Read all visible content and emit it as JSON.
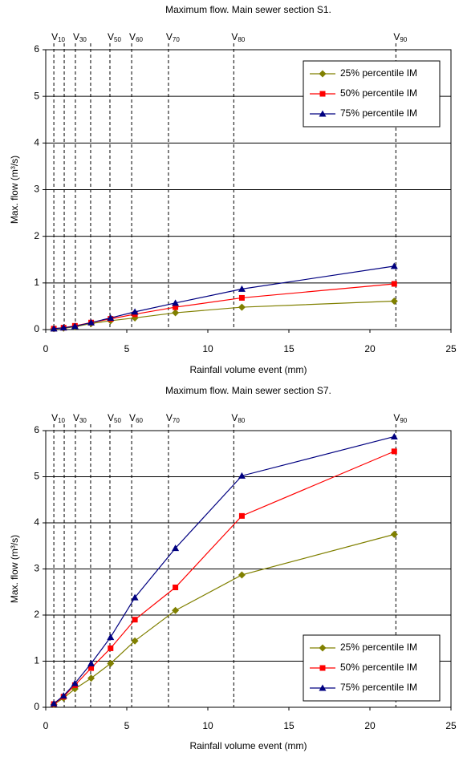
{
  "chart_data": [
    {
      "type": "line",
      "title": "Maximum flow. Main sewer section S1.",
      "xlabel": "Rainfall volume event (mm)",
      "ylabel": "Max. flow (m³/s)",
      "x": [
        0.5,
        1.1,
        1.8,
        2.8,
        4.0,
        5.5,
        8.0,
        12.1,
        21.5
      ],
      "series": [
        {
          "name": "25% percentile IM",
          "color": "#808000",
          "marker": "diamond",
          "values": [
            0.02,
            0.03,
            0.06,
            0.13,
            0.19,
            0.25,
            0.36,
            0.48,
            0.61
          ]
        },
        {
          "name": "50% percentile IM",
          "color": "#ff0000",
          "marker": "square",
          "values": [
            0.02,
            0.04,
            0.08,
            0.15,
            0.23,
            0.33,
            0.48,
            0.68,
            0.98
          ]
        },
        {
          "name": "75% percentile IM",
          "color": "#000080",
          "marker": "triangle",
          "values": [
            0.02,
            0.04,
            0.07,
            0.15,
            0.25,
            0.38,
            0.57,
            0.87,
            1.36
          ]
        }
      ],
      "vlines": [
        {
          "value": 0.5,
          "label": "V",
          "sub": "10"
        },
        {
          "value": 1.14,
          "label": null,
          "sub": null
        },
        {
          "value": 1.83,
          "label": "V",
          "sub": "30"
        },
        {
          "value": 2.77,
          "label": null,
          "sub": null
        },
        {
          "value": 3.96,
          "label": "V",
          "sub": "50"
        },
        {
          "value": 5.3,
          "label": "V",
          "sub": "60"
        },
        {
          "value": 7.57,
          "label": "V",
          "sub": "70"
        },
        {
          "value": 11.6,
          "label": "V",
          "sub": "80"
        },
        {
          "value": 21.6,
          "label": "V",
          "sub": "90"
        }
      ],
      "xlim": [
        0,
        25
      ],
      "xticks": [
        0,
        5,
        10,
        15,
        20,
        25
      ],
      "ylim": [
        0,
        6
      ],
      "yticks": [
        0,
        1,
        2,
        3,
        4,
        5,
        6
      ],
      "grid": true,
      "legend": "upper right"
    },
    {
      "type": "line",
      "title": "Maximum flow. Main sewer section S7.",
      "xlabel": "Rainfall volume event (mm)",
      "ylabel": "Max. flow (m³/s)",
      "x": [
        0.5,
        1.1,
        1.8,
        2.8,
        4.0,
        5.5,
        8.0,
        12.1,
        21.5
      ],
      "series": [
        {
          "name": "25% percentile IM",
          "color": "#808000",
          "marker": "diamond",
          "values": [
            0.06,
            0.2,
            0.4,
            0.63,
            0.95,
            1.44,
            2.1,
            2.87,
            3.75
          ]
        },
        {
          "name": "50% percentile IM",
          "color": "#ff0000",
          "marker": "square",
          "values": [
            0.07,
            0.23,
            0.48,
            0.85,
            1.28,
            1.9,
            2.6,
            4.15,
            5.55
          ]
        },
        {
          "name": "75% percentile IM",
          "color": "#000080",
          "marker": "triangle",
          "values": [
            0.08,
            0.25,
            0.52,
            0.95,
            1.52,
            2.38,
            3.45,
            5.02,
            5.87
          ]
        }
      ],
      "vlines": [
        {
          "value": 0.5,
          "label": "V",
          "sub": "10"
        },
        {
          "value": 1.14,
          "label": null,
          "sub": null
        },
        {
          "value": 1.83,
          "label": "V",
          "sub": "30"
        },
        {
          "value": 2.77,
          "label": null,
          "sub": null
        },
        {
          "value": 3.96,
          "label": "V",
          "sub": "50"
        },
        {
          "value": 5.3,
          "label": "V",
          "sub": "60"
        },
        {
          "value": 7.57,
          "label": "V",
          "sub": "70"
        },
        {
          "value": 11.6,
          "label": "V",
          "sub": "80"
        },
        {
          "value": 21.6,
          "label": "V",
          "sub": "90"
        }
      ],
      "xlim": [
        0,
        25
      ],
      "xticks": [
        0,
        5,
        10,
        15,
        20,
        25
      ],
      "ylim": [
        0,
        6
      ],
      "yticks": [
        0,
        1,
        2,
        3,
        4,
        5,
        6
      ],
      "grid": true,
      "legend": "lower right"
    }
  ]
}
